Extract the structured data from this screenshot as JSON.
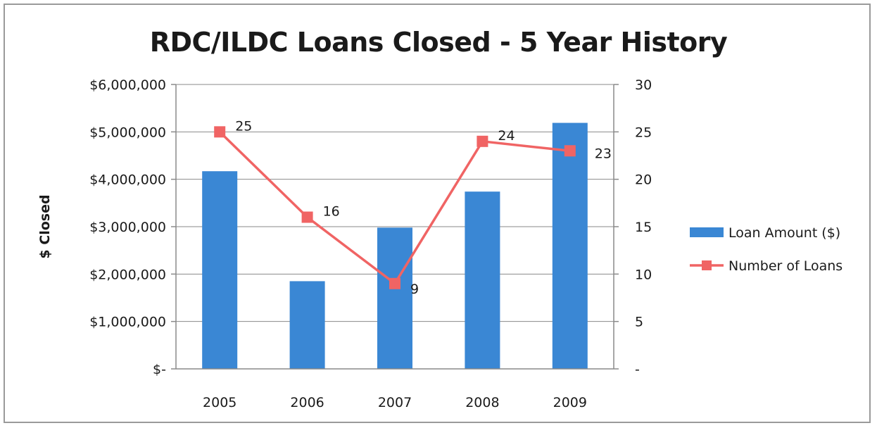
{
  "chart_data": {
    "type": "bar",
    "title": "RDC/ILDC Loans Closed - 5 Year History",
    "ylabel": "$ Closed",
    "y2label": "",
    "categories": [
      "2005",
      "2006",
      "2007",
      "2008",
      "2009"
    ],
    "ylim": [
      0,
      6000000
    ],
    "y2lim": [
      0,
      30
    ],
    "y_ticks": [
      {
        "value": 0,
        "label": "$-"
      },
      {
        "value": 1000000,
        "label": "$1,000,000"
      },
      {
        "value": 2000000,
        "label": "$2,000,000"
      },
      {
        "value": 3000000,
        "label": "$3,000,000"
      },
      {
        "value": 4000000,
        "label": "$4,000,000"
      },
      {
        "value": 5000000,
        "label": "$5,000,000"
      },
      {
        "value": 6000000,
        "label": "$6,000,000"
      }
    ],
    "y2_ticks": [
      {
        "value": 0,
        "label": "-"
      },
      {
        "value": 5,
        "label": "5"
      },
      {
        "value": 10,
        "label": "10"
      },
      {
        "value": 15,
        "label": "15"
      },
      {
        "value": 20,
        "label": "20"
      },
      {
        "value": 25,
        "label": "25"
      },
      {
        "value": 30,
        "label": "30"
      }
    ],
    "grid": true,
    "legend_position": "right",
    "series": [
      {
        "name": "Loan Amount ($)",
        "type": "bar",
        "axis": "left",
        "color": "#3a87d4",
        "values": [
          4170000,
          1850000,
          2980000,
          3740000,
          5190000
        ]
      },
      {
        "name": "Number of Loans",
        "type": "line",
        "axis": "right",
        "color": "#f06464",
        "marker": "square",
        "values": [
          25,
          16,
          9,
          24,
          23
        ],
        "data_labels": [
          "25",
          "16",
          "9",
          "24",
          "23"
        ]
      }
    ]
  }
}
